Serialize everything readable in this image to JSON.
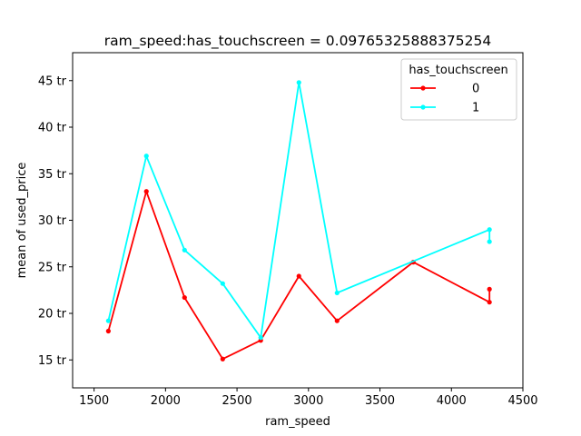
{
  "chart_data": {
    "type": "line",
    "title": "ram_speed:has_touchscreen = 0.09765325888375254",
    "xlabel": "ram_speed",
    "ylabel": "mean of used_price",
    "xlim": [
      1350,
      4500
    ],
    "ylim": [
      12,
      48
    ],
    "x_ticks": [
      1500,
      2000,
      2500,
      3000,
      3500,
      4000,
      4500
    ],
    "y_ticks": [
      {
        "value": 15,
        "label": "15 tr"
      },
      {
        "value": 20,
        "label": "20 tr"
      },
      {
        "value": 25,
        "label": "25 tr"
      },
      {
        "value": 30,
        "label": "30 tr"
      },
      {
        "value": 35,
        "label": "35 tr"
      },
      {
        "value": 40,
        "label": "40 tr"
      },
      {
        "value": 45,
        "label": "45 tr"
      }
    ],
    "legend": {
      "title": "has_touchscreen",
      "placement": "top-right"
    },
    "series": [
      {
        "name": "0",
        "color": "#ff0000",
        "points": [
          {
            "x": 1600,
            "y": 18.1
          },
          {
            "x": 1866,
            "y": 33.1
          },
          {
            "x": 2133,
            "y": 21.7
          },
          {
            "x": 2400,
            "y": 15.1
          },
          {
            "x": 2666,
            "y": 17.1
          },
          {
            "x": 2933,
            "y": 24.0
          },
          {
            "x": 3200,
            "y": 19.2
          },
          {
            "x": 3733,
            "y": 25.5
          },
          {
            "x": 4266,
            "y": 21.2
          },
          {
            "x": 4266,
            "y": 22.6
          }
        ]
      },
      {
        "name": "1",
        "color": "#00ffff",
        "points": [
          {
            "x": 1600,
            "y": 19.2
          },
          {
            "x": 1866,
            "y": 36.9
          },
          {
            "x": 2133,
            "y": 26.8
          },
          {
            "x": 2400,
            "y": 23.2
          },
          {
            "x": 2666,
            "y": 17.4
          },
          {
            "x": 2933,
            "y": 44.8
          },
          {
            "x": 3200,
            "y": 22.2
          },
          {
            "x": 4266,
            "y": 29.0
          },
          {
            "x": 4266,
            "y": 27.7
          }
        ]
      }
    ]
  }
}
